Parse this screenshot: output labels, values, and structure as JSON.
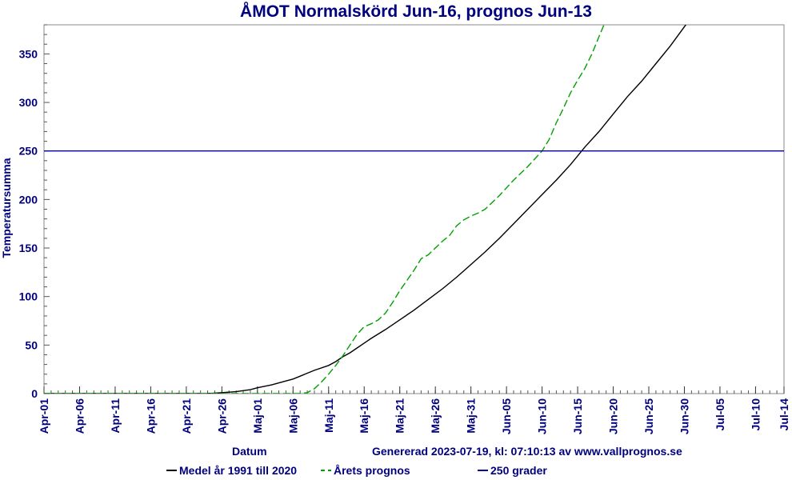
{
  "chart_data": {
    "type": "line",
    "title": "ÅMOT Normalskörd Jun-16, prognos Jun-13",
    "xlabel": "Datum",
    "ylabel": "Temperatursumma",
    "footer": "Genererad 2023-07-19, kl: 07:10:13 av www.vallprognos.se",
    "ylim": [
      0,
      380
    ],
    "yticks": [
      0,
      50,
      100,
      150,
      200,
      250,
      300,
      350
    ],
    "x_day_range": [
      0,
      104
    ],
    "x_ticks": [
      {
        "day": 0,
        "label": "Apr-01"
      },
      {
        "day": 5,
        "label": "Apr-06"
      },
      {
        "day": 10,
        "label": "Apr-11"
      },
      {
        "day": 15,
        "label": "Apr-16"
      },
      {
        "day": 20,
        "label": "Apr-21"
      },
      {
        "day": 25,
        "label": "Apr-26"
      },
      {
        "day": 30,
        "label": "Maj-01"
      },
      {
        "day": 35,
        "label": "Maj-06"
      },
      {
        "day": 40,
        "label": "Maj-11"
      },
      {
        "day": 45,
        "label": "Maj-16"
      },
      {
        "day": 50,
        "label": "Maj-21"
      },
      {
        "day": 55,
        "label": "Maj-26"
      },
      {
        "day": 60,
        "label": "Maj-31"
      },
      {
        "day": 65,
        "label": "Jun-05"
      },
      {
        "day": 70,
        "label": "Jun-10"
      },
      {
        "day": 75,
        "label": "Jun-15"
      },
      {
        "day": 80,
        "label": "Jun-20"
      },
      {
        "day": 85,
        "label": "Jun-25"
      },
      {
        "day": 90,
        "label": "Jun-30"
      },
      {
        "day": 95,
        "label": "Jul-05"
      },
      {
        "day": 100,
        "label": "Jul-10"
      },
      {
        "day": 104,
        "label": "Jul-14"
      }
    ],
    "series": [
      {
        "name": "Medel år 1991 till 2020",
        "color": "#000000",
        "style": "solid",
        "points": [
          [
            0,
            0
          ],
          [
            23,
            0
          ],
          [
            25,
            1
          ],
          [
            27,
            2
          ],
          [
            29,
            4
          ],
          [
            30,
            6
          ],
          [
            32,
            9
          ],
          [
            34,
            13
          ],
          [
            35,
            15
          ],
          [
            36,
            18
          ],
          [
            37,
            21
          ],
          [
            38,
            24
          ],
          [
            40,
            29
          ],
          [
            41,
            33
          ],
          [
            42,
            38
          ],
          [
            43,
            42
          ],
          [
            44,
            47
          ],
          [
            45,
            52
          ],
          [
            46,
            57
          ],
          [
            48,
            66
          ],
          [
            50,
            76
          ],
          [
            52,
            86
          ],
          [
            54,
            97
          ],
          [
            56,
            108
          ],
          [
            58,
            120
          ],
          [
            60,
            133
          ],
          [
            62,
            146
          ],
          [
            64,
            160
          ],
          [
            66,
            175
          ],
          [
            68,
            190
          ],
          [
            70,
            205
          ],
          [
            72,
            220
          ],
          [
            74,
            236
          ],
          [
            76,
            254
          ],
          [
            78,
            270
          ],
          [
            80,
            288
          ],
          [
            82,
            306
          ],
          [
            84,
            322
          ],
          [
            86,
            340
          ],
          [
            88,
            358
          ],
          [
            90,
            378
          ],
          [
            92,
            398
          ]
        ]
      },
      {
        "name": "Årets prognos",
        "color": "#00a000",
        "style": "dashed",
        "points": [
          [
            0,
            0
          ],
          [
            36,
            0
          ],
          [
            37,
            1
          ],
          [
            38,
            5
          ],
          [
            39,
            12
          ],
          [
            40,
            20
          ],
          [
            41,
            29
          ],
          [
            42,
            39
          ],
          [
            43,
            50
          ],
          [
            44,
            61
          ],
          [
            45,
            69
          ],
          [
            46,
            72
          ],
          [
            47,
            76
          ],
          [
            48,
            83
          ],
          [
            49,
            94
          ],
          [
            50,
            106
          ],
          [
            52,
            127
          ],
          [
            53,
            139
          ],
          [
            54,
            143
          ],
          [
            55,
            150
          ],
          [
            56,
            157
          ],
          [
            57,
            163
          ],
          [
            58,
            173
          ],
          [
            59,
            179
          ],
          [
            60,
            183
          ],
          [
            61,
            186
          ],
          [
            62,
            190
          ],
          [
            63,
            197
          ],
          [
            64,
            204
          ],
          [
            65,
            212
          ],
          [
            66,
            220
          ],
          [
            67,
            227
          ],
          [
            68,
            234
          ],
          [
            69,
            242
          ],
          [
            70,
            250
          ],
          [
            71,
            262
          ],
          [
            72,
            279
          ],
          [
            73,
            294
          ],
          [
            74,
            310
          ],
          [
            75,
            323
          ],
          [
            76,
            335
          ],
          [
            77,
            350
          ],
          [
            78,
            368
          ],
          [
            79,
            385
          ],
          [
            80,
            400
          ]
        ]
      },
      {
        "name": "250 grader",
        "color": "#0000a0",
        "style": "solid",
        "points": [
          [
            0,
            250
          ],
          [
            104,
            250
          ]
        ]
      }
    ]
  }
}
